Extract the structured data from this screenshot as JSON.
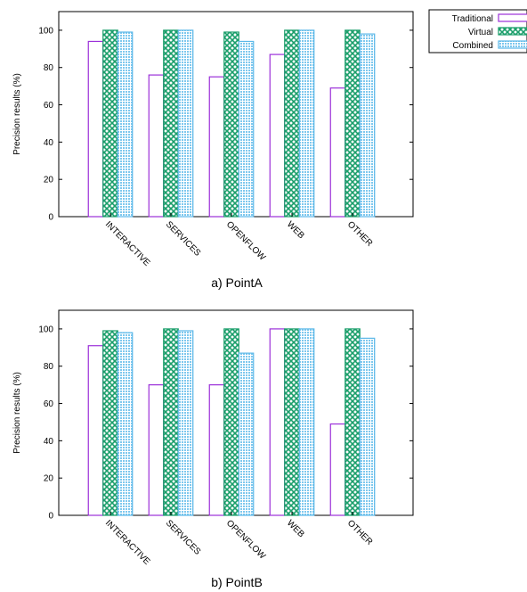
{
  "legend": {
    "entries": [
      "Traditional",
      "Virtual",
      "Combined"
    ]
  },
  "colors": {
    "traditional": "#9b30d9",
    "virtual": "#1a9e6a",
    "combined": "#5bb8e8"
  },
  "chart_data": [
    {
      "type": "bar",
      "caption": "a) PointA",
      "ylabel": "Precision results (%)",
      "ylim": [
        0,
        110
      ],
      "yticks": [
        0,
        20,
        40,
        60,
        80,
        100
      ],
      "categories": [
        "INTERACTIVE",
        "SERVICES",
        "OPENFLOW",
        "WEB",
        "OTHER"
      ],
      "series": [
        {
          "name": "Traditional",
          "values": [
            94,
            76,
            75,
            87,
            69
          ]
        },
        {
          "name": "Virtual",
          "values": [
            100,
            100,
            99,
            100,
            100
          ]
        },
        {
          "name": "Combined",
          "values": [
            99,
            100,
            94,
            100,
            98
          ]
        }
      ],
      "legend_position": "top-right",
      "grid": false
    },
    {
      "type": "bar",
      "caption": "b) PointB",
      "ylabel": "Precision results (%)",
      "ylim": [
        0,
        110
      ],
      "yticks": [
        0,
        20,
        40,
        60,
        80,
        100
      ],
      "categories": [
        "INTERACTIVE",
        "SERVICES",
        "OPENFLOW",
        "WEB",
        "OTHER"
      ],
      "series": [
        {
          "name": "Traditional",
          "values": [
            91,
            70,
            70,
            100,
            49
          ]
        },
        {
          "name": "Virtual",
          "values": [
            99,
            100,
            100,
            100,
            100
          ]
        },
        {
          "name": "Combined",
          "values": [
            98,
            99,
            87,
            100,
            95
          ]
        }
      ],
      "grid": false
    }
  ]
}
